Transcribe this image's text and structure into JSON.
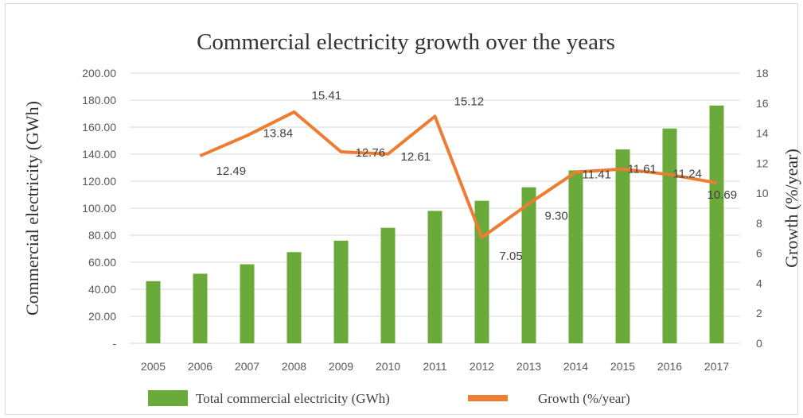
{
  "chart_data": {
    "type": "bar",
    "title": "Commercial electricity growth over the years",
    "categories": [
      "2005",
      "2006",
      "2007",
      "2008",
      "2009",
      "2010",
      "2011",
      "2012",
      "2013",
      "2014",
      "2015",
      "2016",
      "2017"
    ],
    "ylabel": "Commercial electricity (GWh)",
    "y2label": "Growth (%/year)",
    "ylim": [
      0,
      200
    ],
    "y2lim": [
      0,
      18
    ],
    "yticks": [
      "-",
      "20.00",
      "40.00",
      "60.00",
      "80.00",
      "100.00",
      "120.00",
      "140.00",
      "160.00",
      "180.00",
      "200.00"
    ],
    "y2ticks": [
      "0",
      "2",
      "4",
      "6",
      "8",
      "10",
      "12",
      "14",
      "16",
      "18"
    ],
    "grid": true,
    "legend_position": "bottom",
    "series": [
      {
        "name": "Total commercial electricity (GWh)",
        "type": "bar",
        "axis": "left",
        "color": "#6aaa3a",
        "values": [
          46,
          51.5,
          58.5,
          67.5,
          76,
          85.5,
          98,
          105.5,
          115.5,
          128,
          143.5,
          159,
          176
        ]
      },
      {
        "name": "Growth (%/year)",
        "type": "line",
        "axis": "right",
        "color": "#ed7d31",
        "values": [
          null,
          12.49,
          13.84,
          15.41,
          12.76,
          12.61,
          15.12,
          7.05,
          9.3,
          11.41,
          11.61,
          11.24,
          10.69
        ],
        "labels": [
          null,
          "12.49",
          "13.84",
          "15.41",
          "12.76",
          "12.61",
          "15.12",
          "7.05",
          "9.30",
          "11.41",
          "11.61",
          "11.24",
          "10.69"
        ]
      }
    ]
  }
}
